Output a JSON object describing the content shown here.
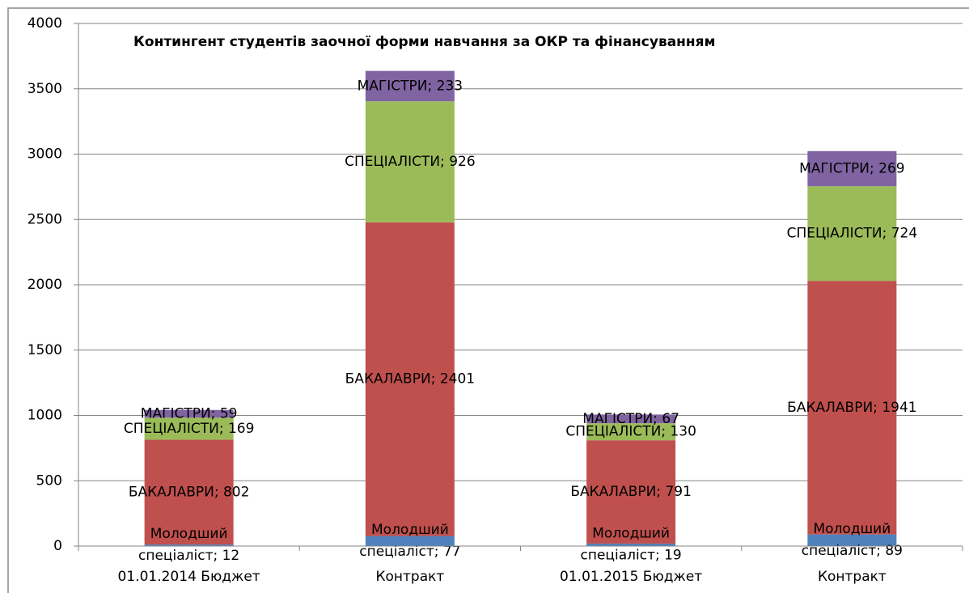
{
  "chart_data": {
    "type": "stacked_bar",
    "title": "Контингент студентів заочної форми навчання за ОКР та фінансуванням",
    "categories": [
      "01.01.2014 Бюджет",
      "Контракт",
      "01.01.2015 Бюджет",
      "Контракт"
    ],
    "series": [
      {
        "name": "Молодший спеціаліст",
        "color": "#4f81bd",
        "values": [
          12,
          77,
          19,
          89
        ],
        "value_labels": [
          "Молодший спеціаліст; 12",
          "Молодший спеціаліст; 77",
          "Молодший спеціаліст; 19",
          "Молодший спеціаліст; 89"
        ]
      },
      {
        "name": "БАКАЛАВРИ",
        "color": "#c0504d",
        "values": [
          802,
          2401,
          791,
          1941
        ],
        "value_labels": [
          "БАКАЛАВРИ; 802",
          "БАКАЛАВРИ; 2401",
          "БАКАЛАВРИ; 791",
          "БАКАЛАВРИ; 1941"
        ]
      },
      {
        "name": "СПЕЦІАЛІСТИ",
        "color": "#9bbb59",
        "values": [
          169,
          926,
          130,
          724
        ],
        "value_labels": [
          "СПЕЦІАЛІСТИ; 169",
          "СПЕЦІАЛІСТИ; 926",
          "СПЕЦІАЛІСТИ; 130",
          "СПЕЦІАЛІСТИ; 724"
        ]
      },
      {
        "name": "МАГІСТРИ",
        "color": "#8064a2",
        "values": [
          59,
          233,
          67,
          269
        ],
        "value_labels": [
          "МАГІСТРИ; 59",
          "МАГІСТРИ; 233",
          "МАГІСТРИ; 67",
          "МАГІСТРИ; 269"
        ]
      }
    ],
    "ylim": [
      0,
      4000
    ],
    "yticks": [
      0,
      500,
      1000,
      1500,
      2000,
      2500,
      3000,
      3500,
      4000
    ],
    "grid": true
  }
}
